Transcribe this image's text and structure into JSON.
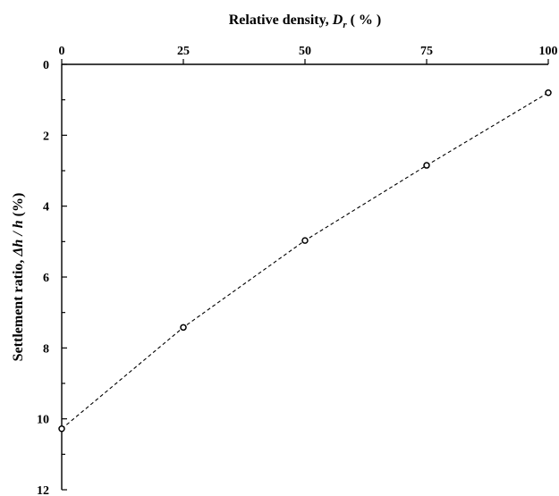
{
  "chart_data": {
    "type": "scatter",
    "x_axis": {
      "label_text": "Relative density, ",
      "label_var": "D",
      "label_sub": "r",
      "label_unit": " ( % )",
      "position": "top",
      "range": [
        0,
        100
      ],
      "ticks": [
        0,
        25,
        50,
        75,
        100
      ]
    },
    "y_axis": {
      "label_text": "Settlement ratio, ",
      "label_var": "Δh / h",
      "label_unit": " (%)",
      "range": [
        0,
        12
      ],
      "inverted": true,
      "ticks": [
        0,
        2,
        4,
        6,
        8,
        10,
        12
      ],
      "minor_step": 1
    },
    "grid": false,
    "legend": "none",
    "series": [
      {
        "x": [
          0,
          25,
          50,
          75,
          100
        ],
        "y": [
          10.28,
          7.42,
          4.97,
          2.85,
          0.8
        ],
        "marker": "open-circle",
        "line": "dashed",
        "color": "#000000"
      }
    ]
  }
}
